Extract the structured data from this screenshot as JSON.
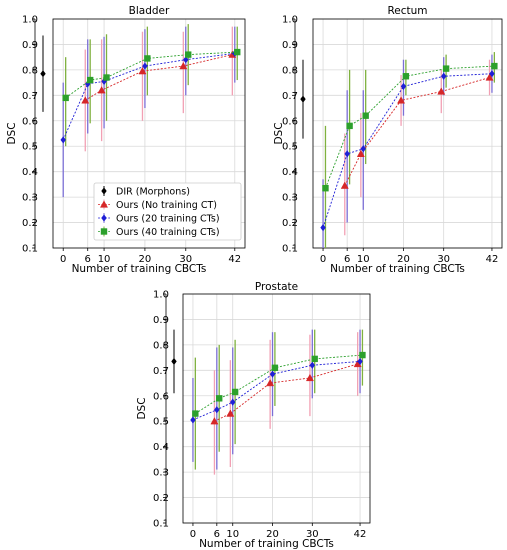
{
  "chart_data": [
    {
      "type": "line",
      "title": "Bladder",
      "xlabel": "Number of training CBCTs",
      "ylabel": "DSC",
      "ylim": [
        0.1,
        1.0
      ],
      "x_ticks": [
        0,
        6,
        10,
        20,
        30,
        42
      ],
      "y_ticks": [
        "0.1",
        "0.2",
        "0.3",
        "0.4",
        "0.5",
        "0.6",
        "0.7",
        "0.8",
        "0.9",
        "1.0"
      ],
      "grid": true,
      "legend": {
        "placement": "bottom-right",
        "entries": [
          "DIR (Morphons)",
          "Ours (No training CT)",
          "Ours (20 training CTs)",
          "Ours (40 training CTs)"
        ]
      },
      "dir_reference": {
        "name": "DIR (Morphons)",
        "value": 0.785,
        "err_low": 0.635,
        "err_high": 0.935
      },
      "series": [
        {
          "name": "Ours (No training CT)",
          "x": [
            6,
            10,
            20,
            30,
            42
          ],
          "values": [
            0.68,
            0.72,
            0.795,
            0.815,
            0.86
          ],
          "err_low": [
            0.48,
            0.52,
            0.6,
            0.63,
            0.7
          ],
          "err_high": [
            0.88,
            0.92,
            0.95,
            0.95,
            0.97
          ]
        },
        {
          "name": "Ours (20 training CTs)",
          "x": [
            0,
            6,
            10,
            20,
            30,
            42
          ],
          "values": [
            0.525,
            0.745,
            0.755,
            0.815,
            0.84,
            0.865
          ],
          "err_low": [
            0.3,
            0.55,
            0.57,
            0.65,
            0.7,
            0.75
          ],
          "err_high": [
            0.75,
            0.92,
            0.93,
            0.96,
            0.97,
            0.97
          ]
        },
        {
          "name": "Ours (40 training CTs)",
          "x": [
            0,
            6,
            10,
            20,
            30,
            42
          ],
          "values": [
            0.69,
            0.76,
            0.77,
            0.845,
            0.86,
            0.87
          ],
          "err_low": [
            0.5,
            0.59,
            0.6,
            0.7,
            0.74,
            0.76
          ],
          "err_high": [
            0.85,
            0.92,
            0.94,
            0.97,
            0.98,
            0.97
          ]
        }
      ]
    },
    {
      "type": "line",
      "title": "Rectum",
      "xlabel": "Number of training CBCTs",
      "ylabel": "DSC",
      "ylim": [
        0.1,
        1.0
      ],
      "x_ticks": [
        0,
        6,
        10,
        20,
        30,
        42
      ],
      "y_ticks": [
        "0.1",
        "0.2",
        "0.3",
        "0.4",
        "0.5",
        "0.6",
        "0.7",
        "0.8",
        "0.9",
        "1.0"
      ],
      "grid": true,
      "dir_reference": {
        "name": "DIR (Morphons)",
        "value": 0.685,
        "err_low": 0.53,
        "err_high": 0.84
      },
      "series": [
        {
          "name": "Ours (No training CT)",
          "x": [
            6,
            10,
            20,
            30,
            42
          ],
          "values": [
            0.345,
            0.47,
            0.68,
            0.715,
            0.77
          ],
          "err_low": [
            0.15,
            0.3,
            0.58,
            0.63,
            0.7
          ],
          "err_high": [
            0.55,
            0.63,
            0.78,
            0.8,
            0.84
          ]
        },
        {
          "name": "Ours (20 training CTs)",
          "x": [
            0,
            6,
            10,
            20,
            30,
            42
          ],
          "values": [
            0.18,
            0.47,
            0.49,
            0.735,
            0.775,
            0.785
          ],
          "err_low": [
            0.1,
            0.2,
            0.25,
            0.62,
            0.7,
            0.71
          ],
          "err_high": [
            0.37,
            0.72,
            0.72,
            0.84,
            0.85,
            0.86
          ]
        },
        {
          "name": "Ours (40 training CTs)",
          "x": [
            0,
            6,
            10,
            20,
            30,
            42
          ],
          "values": [
            0.335,
            0.58,
            0.62,
            0.775,
            0.805,
            0.815
          ],
          "err_low": [
            0.1,
            0.35,
            0.43,
            0.7,
            0.73,
            0.75
          ],
          "err_high": [
            0.58,
            0.8,
            0.8,
            0.84,
            0.86,
            0.87
          ]
        }
      ]
    },
    {
      "type": "line",
      "title": "Prostate",
      "xlabel": "Number of training CBCTs",
      "ylabel": "DSC",
      "ylim": [
        0.1,
        1.0
      ],
      "x_ticks": [
        0,
        6,
        10,
        20,
        30,
        42
      ],
      "y_ticks": [
        "0.1",
        "0.2",
        "0.3",
        "0.4",
        "0.5",
        "0.6",
        "0.7",
        "0.8",
        "0.9",
        "1.0"
      ],
      "grid": true,
      "dir_reference": {
        "name": "DIR (Morphons)",
        "value": 0.735,
        "err_low": 0.61,
        "err_high": 0.86
      },
      "series": [
        {
          "name": "Ours (No training CT)",
          "x": [
            6,
            10,
            20,
            30,
            42
          ],
          "values": [
            0.5,
            0.53,
            0.65,
            0.67,
            0.725
          ],
          "err_low": [
            0.29,
            0.32,
            0.47,
            0.52,
            0.6
          ],
          "err_high": [
            0.7,
            0.74,
            0.82,
            0.84,
            0.85
          ]
        },
        {
          "name": "Ours (20 training CTs)",
          "x": [
            0,
            6,
            10,
            20,
            30,
            42
          ],
          "values": [
            0.505,
            0.545,
            0.575,
            0.685,
            0.72,
            0.735
          ],
          "err_low": [
            0.34,
            0.31,
            0.37,
            0.52,
            0.59,
            0.61
          ],
          "err_high": [
            0.67,
            0.79,
            0.79,
            0.85,
            0.86,
            0.86
          ]
        },
        {
          "name": "Ours (40 training CTs)",
          "x": [
            0,
            6,
            10,
            20,
            30,
            42
          ],
          "values": [
            0.53,
            0.59,
            0.615,
            0.71,
            0.745,
            0.76
          ],
          "err_low": [
            0.31,
            0.38,
            0.41,
            0.56,
            0.61,
            0.64
          ],
          "err_high": [
            0.75,
            0.8,
            0.82,
            0.85,
            0.86,
            0.86
          ]
        }
      ]
    }
  ],
  "series_colors": {
    "Ours (No training CT)": "#d62728",
    "Ours (20 training CTs)": "#1f1fd6",
    "Ours (40 training CTs)": "#2ca02c",
    "DIR (Morphons)": "#000000"
  },
  "errorbar_colors": {
    "Ours (No training CT)": "#f2a0b4",
    "Ours (20 training CTs)": "#7b6fd6",
    "Ours (40 training CTs)": "#7fb13f",
    "DIR (Morphons)": "#000000"
  },
  "series_markers": {
    "Ours (No training CT)": "triangle",
    "Ours (20 training CTs)": "diamond",
    "Ours (40 training CTs)": "square",
    "DIR (Morphons)": "diamond"
  }
}
